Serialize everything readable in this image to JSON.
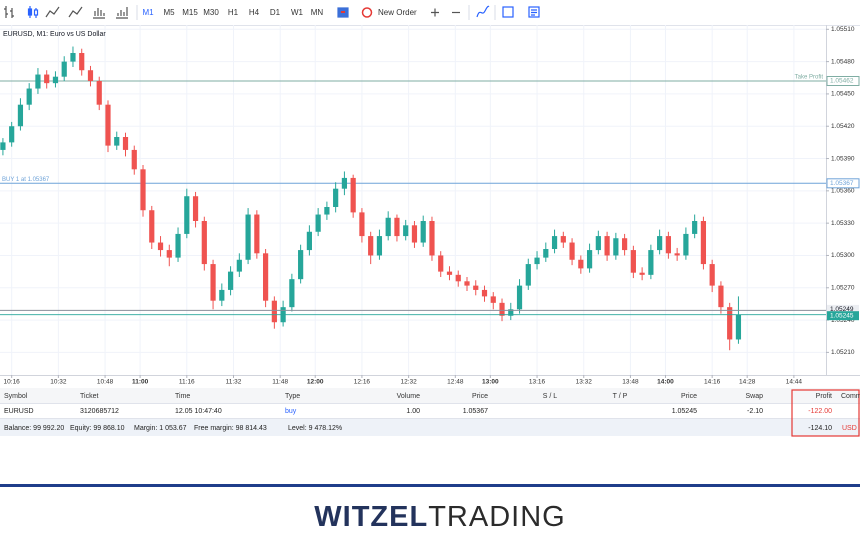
{
  "toolbar": {
    "timeframes": [
      "M1",
      "M5",
      "M15",
      "M30",
      "H1",
      "H4",
      "D1",
      "W1",
      "MN"
    ],
    "new_order": "New Order"
  },
  "chart_data": {
    "type": "candlestick",
    "title": "EURUSD, M1: Euro vs US Dollar",
    "x": [
      "10:13",
      "10:16",
      "10:19",
      "10:22",
      "10:25",
      "10:28",
      "10:31",
      "10:34",
      "10:37",
      "10:40",
      "10:43",
      "10:46",
      "10:49",
      "10:52",
      "10:55",
      "10:58",
      "11:01",
      "11:04",
      "11:07",
      "11:10",
      "11:13",
      "11:16",
      "11:19",
      "11:22",
      "11:25",
      "11:28",
      "11:31",
      "11:34",
      "11:37",
      "11:40",
      "11:43",
      "11:46",
      "11:49",
      "11:52",
      "11:55",
      "11:58",
      "12:01",
      "12:04",
      "12:07",
      "12:10",
      "12:13",
      "12:16",
      "12:19",
      "12:22",
      "12:25",
      "12:28",
      "12:31",
      "12:34",
      "12:37",
      "12:40",
      "12:43",
      "12:46",
      "12:49",
      "12:52",
      "12:55",
      "12:58",
      "13:01",
      "13:04",
      "13:07",
      "13:10",
      "13:13",
      "13:16",
      "13:19",
      "13:22",
      "13:25",
      "13:28",
      "13:31",
      "13:34",
      "13:37",
      "13:40",
      "13:43",
      "13:46",
      "13:49",
      "13:52",
      "13:55",
      "13:58",
      "14:01",
      "14:04",
      "14:07",
      "14:10",
      "14:13",
      "14:16",
      "14:19",
      "14:22",
      "14:25"
    ],
    "open": [
      1.05398,
      1.05405,
      1.0542,
      1.0544,
      1.05455,
      1.05468,
      1.0546,
      1.05466,
      1.0548,
      1.05488,
      1.05472,
      1.05462,
      1.0544,
      1.05402,
      1.0541,
      1.05398,
      1.0538,
      1.05342,
      1.05312,
      1.05305,
      1.05298,
      1.0532,
      1.05355,
      1.05332,
      1.05292,
      1.05258,
      1.05268,
      1.05285,
      1.05296,
      1.05338,
      1.05302,
      1.05258,
      1.05238,
      1.05252,
      1.05278,
      1.05305,
      1.05322,
      1.05338,
      1.05345,
      1.05362,
      1.05372,
      1.0534,
      1.05318,
      1.053,
      1.05318,
      1.05335,
      1.05318,
      1.05328,
      1.05312,
      1.05332,
      1.053,
      1.05285,
      1.05282,
      1.05276,
      1.05272,
      1.05268,
      1.05262,
      1.05256,
      1.05244,
      1.0525,
      1.05272,
      1.05292,
      1.05298,
      1.05306,
      1.05318,
      1.05312,
      1.05296,
      1.05288,
      1.05305,
      1.05318,
      1.053,
      1.05316,
      1.05305,
      1.05284,
      1.05282,
      1.05305,
      1.05318,
      1.05302,
      1.053,
      1.0532,
      1.05332,
      1.05292,
      1.05272,
      1.05252,
      1.05222
    ],
    "high": [
      1.05409,
      1.05424,
      1.05446,
      1.0546,
      1.05474,
      1.05472,
      1.05471,
      1.05485,
      1.05494,
      1.05492,
      1.05476,
      1.05466,
      1.05444,
      1.05415,
      1.05414,
      1.05402,
      1.05384,
      1.05346,
      1.05318,
      1.0531,
      1.05326,
      1.05362,
      1.05359,
      1.05336,
      1.05296,
      1.05274,
      1.0529,
      1.05302,
      1.05344,
      1.05342,
      1.05306,
      1.05262,
      1.05258,
      1.05283,
      1.0531,
      1.05328,
      1.05344,
      1.0535,
      1.05368,
      1.05378,
      1.05375,
      1.05344,
      1.05322,
      1.05324,
      1.05341,
      1.05338,
      1.05333,
      1.05332,
      1.05337,
      1.05336,
      1.05304,
      1.0529,
      1.05286,
      1.0528,
      1.05277,
      1.05272,
      1.05266,
      1.0526,
      1.05256,
      1.05278,
      1.05297,
      1.05304,
      1.05312,
      1.05324,
      1.05322,
      1.05316,
      1.053,
      1.05311,
      1.05323,
      1.05322,
      1.05321,
      1.0532,
      1.05309,
      1.05289,
      1.0531,
      1.05324,
      1.05322,
      1.05307,
      1.05326,
      1.05338,
      1.05336,
      1.05296,
      1.05276,
      1.05256,
      1.05262
    ],
    "low": [
      1.05393,
      1.05401,
      1.05416,
      1.05435,
      1.0545,
      1.05455,
      1.05456,
      1.05462,
      1.05475,
      1.05467,
      1.05457,
      1.05435,
      1.05396,
      1.05398,
      1.05392,
      1.05375,
      1.05336,
      1.05306,
      1.05299,
      1.0529,
      1.05294,
      1.05316,
      1.05326,
      1.05286,
      1.0525,
      1.05253,
      1.05263,
      1.0528,
      1.05292,
      1.05297,
      1.05252,
      1.05232,
      1.05234,
      1.05248,
      1.05274,
      1.053,
      1.05318,
      1.05333,
      1.0534,
      1.05356,
      1.05335,
      1.05312,
      1.05292,
      1.05296,
      1.05314,
      1.05313,
      1.05314,
      1.05307,
      1.05308,
      1.05295,
      1.0528,
      1.05277,
      1.05271,
      1.05267,
      1.05263,
      1.05257,
      1.0525,
      1.05239,
      1.0524,
      1.05246,
      1.05268,
      1.05287,
      1.05294,
      1.05302,
      1.05307,
      1.05291,
      1.05283,
      1.05284,
      1.05301,
      1.05295,
      1.05296,
      1.053,
      1.05279,
      1.05277,
      1.05278,
      1.05301,
      1.05297,
      1.05295,
      1.05296,
      1.05316,
      1.05287,
      1.05266,
      1.05246,
      1.05212,
      1.05218
    ],
    "close": [
      1.05405,
      1.0542,
      1.0544,
      1.05455,
      1.05468,
      1.0546,
      1.05466,
      1.0548,
      1.05488,
      1.05472,
      1.05462,
      1.0544,
      1.05402,
      1.0541,
      1.05398,
      1.0538,
      1.05342,
      1.05312,
      1.05305,
      1.05298,
      1.0532,
      1.05355,
      1.05332,
      1.05292,
      1.05258,
      1.05268,
      1.05285,
      1.05296,
      1.05338,
      1.05302,
      1.05258,
      1.05238,
      1.05252,
      1.05278,
      1.05305,
      1.05322,
      1.05338,
      1.05345,
      1.05362,
      1.05372,
      1.0534,
      1.05318,
      1.053,
      1.05318,
      1.05335,
      1.05318,
      1.05328,
      1.05312,
      1.05332,
      1.053,
      1.05285,
      1.05282,
      1.05276,
      1.05272,
      1.05268,
      1.05262,
      1.05256,
      1.05244,
      1.0525,
      1.05272,
      1.05292,
      1.05298,
      1.05306,
      1.05318,
      1.05312,
      1.05296,
      1.05288,
      1.05305,
      1.05318,
      1.053,
      1.05316,
      1.05305,
      1.05284,
      1.05282,
      1.05305,
      1.05318,
      1.05302,
      1.053,
      1.0532,
      1.05332,
      1.05292,
      1.05272,
      1.05252,
      1.05222,
      1.05245
    ],
    "up_color": "#26a69a",
    "down_color": "#ef5350",
    "xlim": [
      "10:12",
      "14:55"
    ],
    "xticks": [
      "10:16",
      "10:32",
      "10:48",
      "11:00",
      "11:16",
      "11:32",
      "11:48",
      "12:00",
      "12:16",
      "12:32",
      "12:48",
      "13:00",
      "13:16",
      "13:32",
      "13:48",
      "14:00",
      "14:16",
      "14:28",
      "14:44"
    ],
    "ylim": [
      1.05189,
      1.05514
    ],
    "yticks": [
      {
        "value": 1.0551,
        "label": "1.05510"
      },
      {
        "value": 1.0548,
        "label": "1.05480"
      },
      {
        "value": 1.0545,
        "label": "1.05450"
      },
      {
        "value": 1.0542,
        "label": "1.05420"
      },
      {
        "value": 1.0539,
        "label": "1.05390"
      },
      {
        "value": 1.0536,
        "label": "1.05360"
      },
      {
        "value": 1.0533,
        "label": "1.05330"
      },
      {
        "value": 1.053,
        "label": "1.05300"
      },
      {
        "value": 1.0527,
        "label": "1.05270"
      },
      {
        "value": 1.0524,
        "label": "1.05240"
      },
      {
        "value": 1.0521,
        "label": "1.05210"
      }
    ],
    "grid": true,
    "levels": [
      {
        "label": "Take Profit",
        "value": 1.05462,
        "color": "#7fada3"
      },
      {
        "label": "BUY 1 at 1.05367",
        "value": 1.05367,
        "color": "#6fa3d8"
      }
    ],
    "price_lines": [
      {
        "value": 1.05249,
        "color": "#8a8e99"
      },
      {
        "value": 1.05245,
        "color": "#26a69a"
      }
    ]
  },
  "table": {
    "headers": [
      "Symbol",
      "Ticket",
      "Time",
      "Type",
      "Volume",
      "Price",
      "S / L",
      "T / P",
      "Price",
      "Swap",
      "Profit",
      "Comm"
    ],
    "row": {
      "symbol": "EURUSD",
      "ticket": "3120685712",
      "time": "12.05 10:47:40",
      "type": "buy",
      "volume": "1.00",
      "open_price": "1.05367",
      "price": "1.05245",
      "swap": "-2.10",
      "profit": "-122.00"
    },
    "account": {
      "balance": "Balance: 99 992.20",
      "equity": "Equity: 99 868.10",
      "margin": "Margin: 1 053.67",
      "free_margin": "Free margin: 98 814.43",
      "level": "Level: 9 478.12%",
      "total": "-124.10",
      "currency": "USD"
    }
  },
  "logo": {
    "bold": "WITZEL",
    "light": "TRADING"
  }
}
